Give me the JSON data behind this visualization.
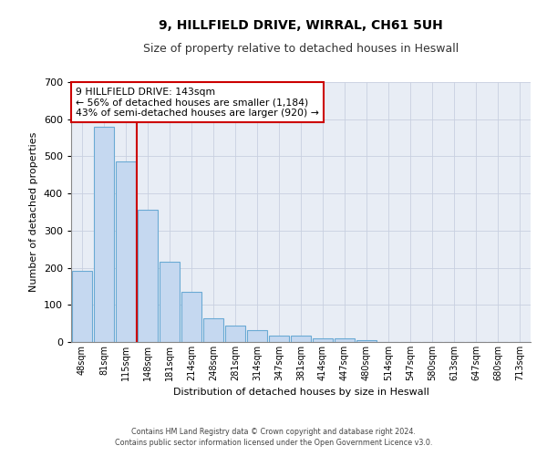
{
  "title_line1": "9, HILLFIELD DRIVE, WIRRAL, CH61 5UH",
  "title_line2": "Size of property relative to detached houses in Heswall",
  "xlabel": "Distribution of detached houses by size in Heswall",
  "ylabel": "Number of detached properties",
  "categories": [
    "48sqm",
    "81sqm",
    "115sqm",
    "148sqm",
    "181sqm",
    "214sqm",
    "248sqm",
    "281sqm",
    "314sqm",
    "347sqm",
    "381sqm",
    "414sqm",
    "447sqm",
    "480sqm",
    "514sqm",
    "547sqm",
    "580sqm",
    "613sqm",
    "647sqm",
    "680sqm",
    "713sqm"
  ],
  "values": [
    192,
    580,
    487,
    355,
    215,
    135,
    63,
    44,
    33,
    17,
    17,
    9,
    10,
    5,
    0,
    0,
    0,
    0,
    0,
    0,
    0
  ],
  "bar_color": "#c5d8f0",
  "bar_edge_color": "#6aaad4",
  "vline_color": "#cc0000",
  "vline_x_index": 3,
  "annotation_line1": "9 HILLFIELD DRIVE: 143sqm",
  "annotation_line2": "← 56% of detached houses are smaller (1,184)",
  "annotation_line3": "43% of semi-detached houses are larger (920) →",
  "annotation_box_facecolor": "#ffffff",
  "annotation_box_edgecolor": "#cc0000",
  "ylim": [
    0,
    700
  ],
  "yticks": [
    0,
    100,
    200,
    300,
    400,
    500,
    600,
    700
  ],
  "grid_color": "#c8d0e0",
  "background_color": "#e8edf5",
  "title1_fontsize": 10,
  "title2_fontsize": 9,
  "ylabel_fontsize": 8,
  "xlabel_fontsize": 8,
  "footer_line1": "Contains HM Land Registry data © Crown copyright and database right 2024.",
  "footer_line2": "Contains public sector information licensed under the Open Government Licence v3.0."
}
